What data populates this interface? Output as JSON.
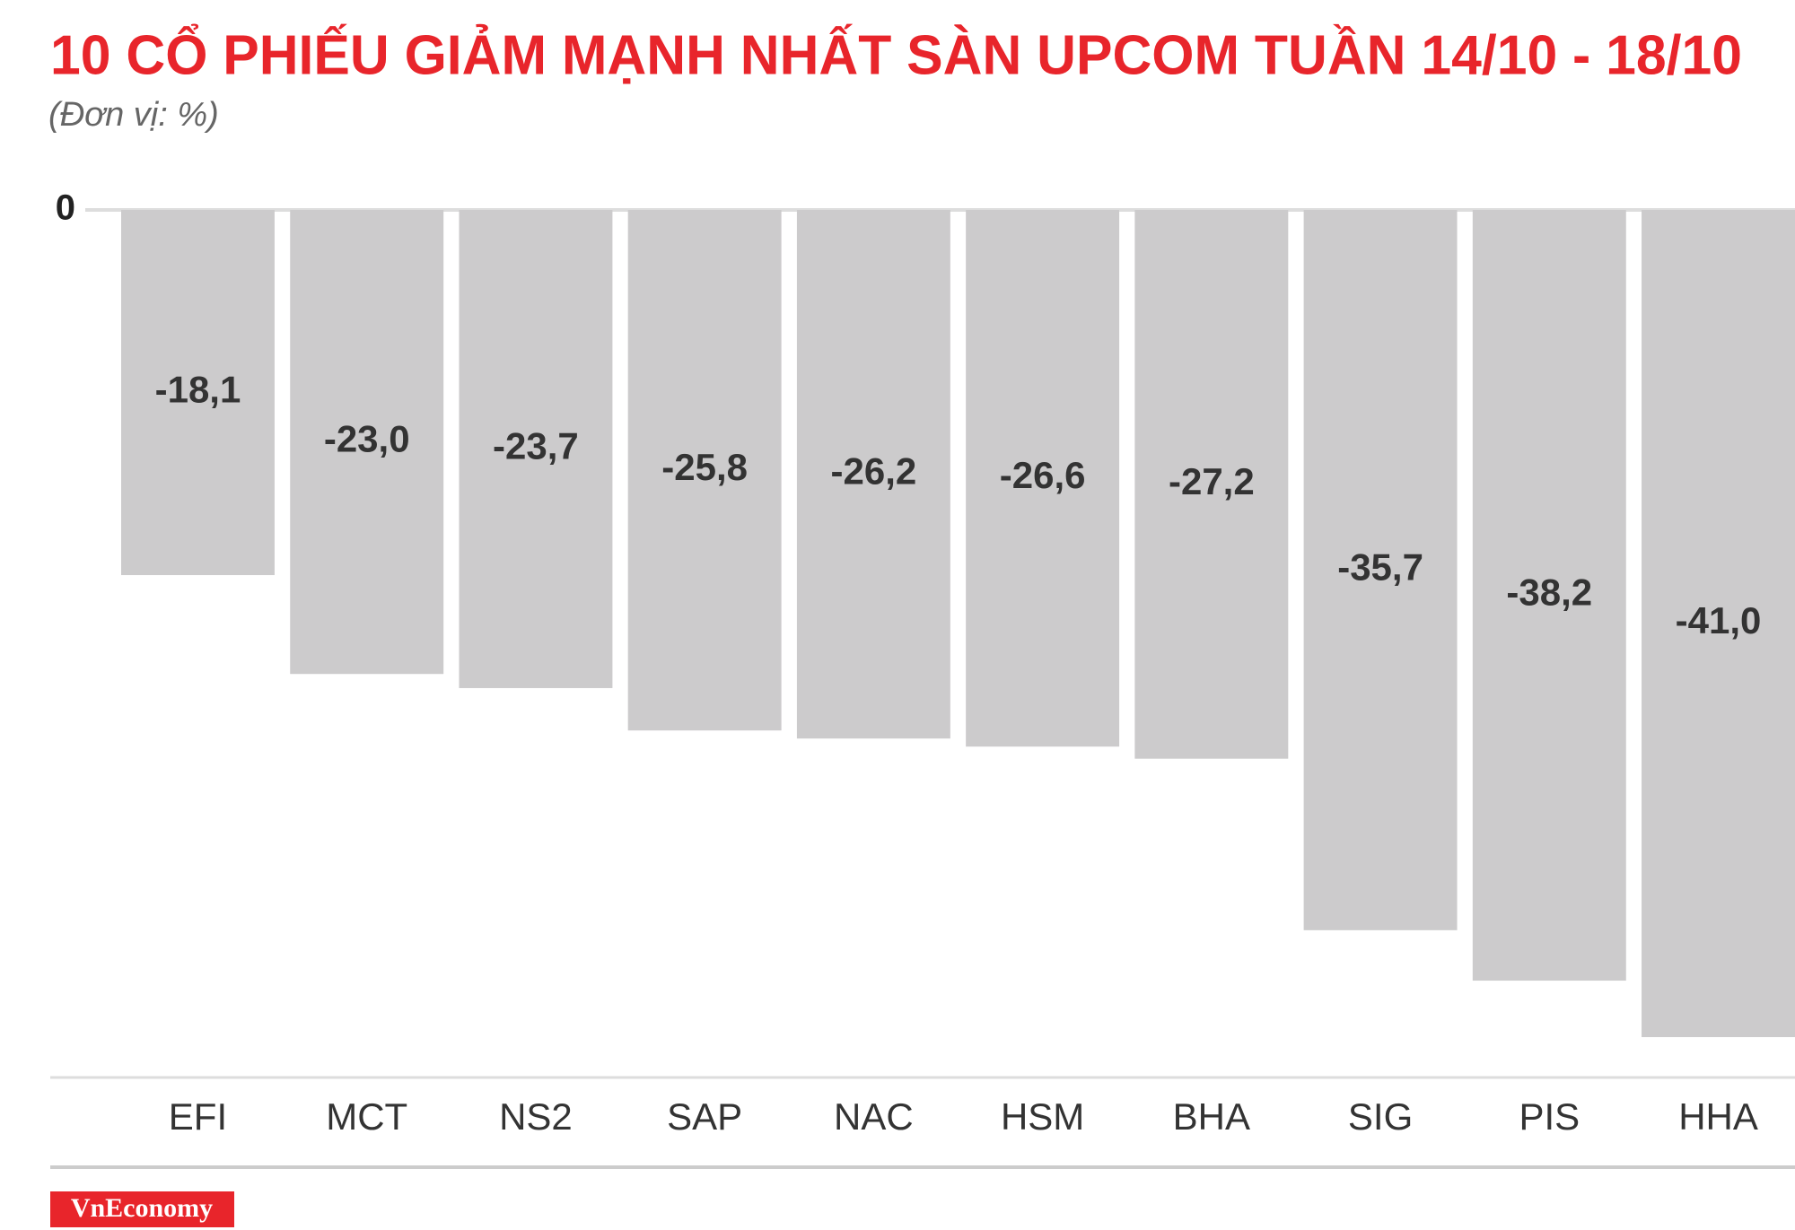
{
  "chart_data": {
    "type": "bar",
    "title": "10 CỔ PHIẾU GIẢM MẠNH NHẤT SÀN UPCOM TUẦN 14/10 - 18/10",
    "subtitle": "(Đơn vị: %)",
    "categories": [
      "EFI",
      "MCT",
      "NS2",
      "SAP",
      "NAC",
      "HSM",
      "BHA",
      "SIG",
      "PIS",
      "HHA"
    ],
    "values": [
      -18.1,
      -23.0,
      -23.7,
      -25.8,
      -26.2,
      -26.6,
      -27.2,
      -35.7,
      -38.2,
      -41.0
    ],
    "value_labels": [
      "-18,1",
      "-23,0",
      "-23,7",
      "-25,8",
      "-26,2",
      "-26,6",
      "-27,2",
      "-35,7",
      "-38,2",
      "-41,0"
    ],
    "color": "#cccbcc",
    "ylim": [
      -43,
      0
    ],
    "yticks": [
      0
    ],
    "source": "VnEconomy"
  }
}
